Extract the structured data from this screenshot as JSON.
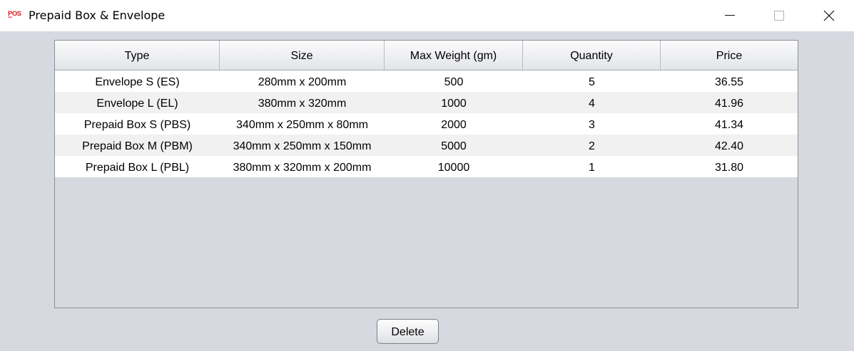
{
  "window": {
    "title": "Prepaid Box & Envelope",
    "icon": "pos-logo-icon",
    "brand_color": "#e31b23",
    "controls": [
      "minimize-icon",
      "maximize-icon",
      "close-icon"
    ]
  },
  "table": {
    "columns": [
      "Type",
      "Size",
      "Max Weight (gm)",
      "Quantity",
      "Price"
    ],
    "rows": [
      [
        "Envelope S (ES)",
        "280mm x 200mm",
        "500",
        "5",
        "36.55"
      ],
      [
        "Envelope L (EL)",
        "380mm x 320mm",
        "1000",
        "4",
        "41.96"
      ],
      [
        "Prepaid Box S (PBS)",
        "340mm x 250mm x 80mm",
        "2000",
        "3",
        "41.34"
      ],
      [
        "Prepaid Box M (PBM)",
        "340mm x 250mm x 150mm",
        "5000",
        "2",
        "42.40"
      ],
      [
        "Prepaid Box L (PBL)",
        "380mm x 320mm x 200mm",
        "10000",
        "1",
        "31.80"
      ]
    ]
  },
  "actions": {
    "delete_label": "Delete"
  }
}
